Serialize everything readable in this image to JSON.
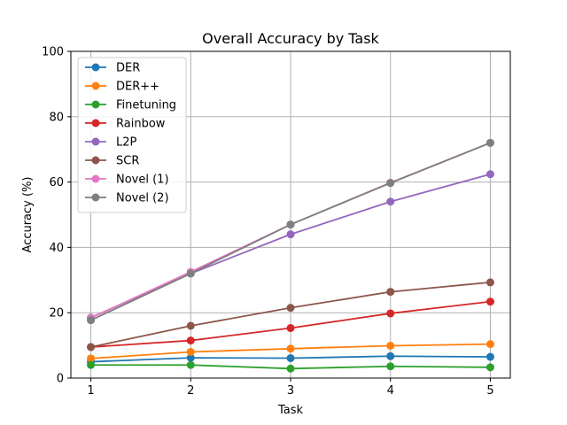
{
  "chart_data": {
    "type": "line",
    "title": "Overall Accuracy by Task",
    "xlabel": "Task",
    "ylabel": "Accuracy (%)",
    "x": [
      1,
      2,
      3,
      4,
      5
    ],
    "xlim": [
      0.8,
      5.2
    ],
    "ylim": [
      0,
      100
    ],
    "xticks": [
      "1",
      "2",
      "3",
      "4",
      "5"
    ],
    "yticks": [
      "0",
      "20",
      "40",
      "60",
      "80",
      "100"
    ],
    "grid": true,
    "legend_position": "upper-left",
    "series": [
      {
        "name": "DER",
        "color": "#1f77b4",
        "values": [
          5.0,
          6.2,
          6.1,
          6.7,
          6.5
        ]
      },
      {
        "name": "DER++",
        "color": "#ff7f0e",
        "values": [
          6.0,
          8.0,
          9.0,
          9.9,
          10.4
        ]
      },
      {
        "name": "Finetuning",
        "color": "#2ca02c",
        "values": [
          4.0,
          4.0,
          2.9,
          3.6,
          3.3
        ]
      },
      {
        "name": "Rainbow",
        "color": "#d62728",
        "values": [
          9.5,
          11.5,
          15.3,
          19.8,
          23.4
        ]
      },
      {
        "name": "L2P",
        "color": "#9467bd",
        "values": [
          18.5,
          32.0,
          44.0,
          54.0,
          62.4
        ]
      },
      {
        "name": "SCR",
        "color": "#8c564b",
        "values": [
          9.5,
          16.0,
          21.5,
          26.4,
          29.3
        ]
      },
      {
        "name": "Novel (1)",
        "color": "#e377c2",
        "values": [
          18.4,
          32.5,
          47.0,
          59.8,
          72.0
        ]
      },
      {
        "name": "Novel (2)",
        "color": "#7f7f7f",
        "values": [
          17.7,
          32.0,
          47.0,
          59.7,
          72.0
        ]
      }
    ]
  }
}
